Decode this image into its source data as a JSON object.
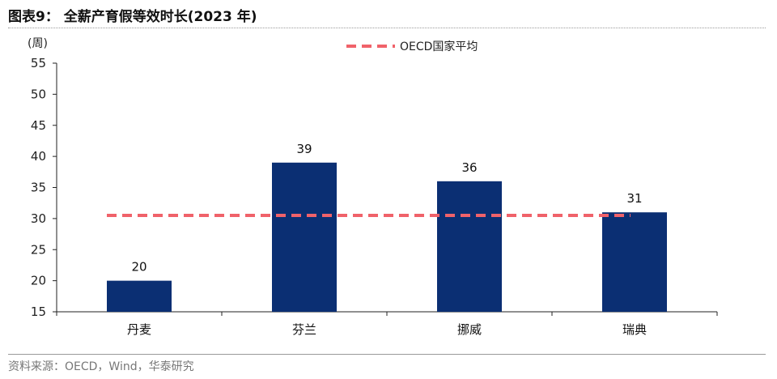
{
  "header": {
    "title": "图表9：  全薪产育假等效时长(2023 年)"
  },
  "footer": {
    "source": "资料来源：OECD，Wind，华泰研究"
  },
  "chart_data": {
    "type": "bar",
    "categories": [
      "丹麦",
      "芬兰",
      "挪威",
      "瑞典"
    ],
    "values": [
      20,
      39,
      36,
      31
    ],
    "data_labels": [
      "20",
      "39",
      "36",
      "31"
    ],
    "ylabel": "(周)",
    "ylim": [
      15,
      55
    ],
    "yticks": [
      15,
      20,
      25,
      30,
      35,
      40,
      45,
      50,
      55
    ],
    "reference_line": {
      "name": "OECD国家平均",
      "value": 30.5,
      "color": "#f0626a",
      "style": "dashed"
    },
    "legend_position": "top-center",
    "bar_color": "#0b2f73",
    "grid": false
  }
}
